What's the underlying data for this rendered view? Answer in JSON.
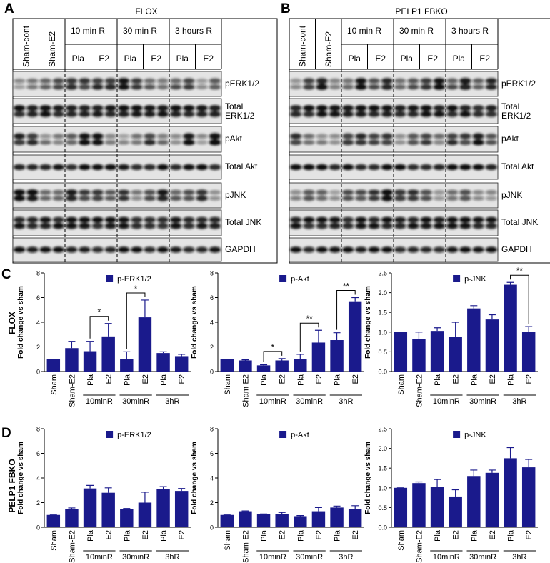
{
  "blots": [
    {
      "letter": "A",
      "title": "FLOX",
      "columns": [
        "Sham-cont",
        "Sham-E2",
        "10 min R",
        "30 min R",
        "3 hours R"
      ],
      "sub": [
        "Pla",
        "E2",
        "Pla",
        "E2",
        "Pla",
        "E2"
      ],
      "rows": [
        "pERK1/2",
        "Total ERK1/2",
        "pAkt",
        "Total Akt",
        "pJNK",
        "Total JNK",
        "GAPDH"
      ]
    },
    {
      "letter": "B",
      "title": "PELP1 FBKO",
      "columns": [
        "Sham-cont",
        "Sham-E2",
        "10 min R",
        "30 min R",
        "3 hours R"
      ],
      "sub": [
        "Pla",
        "E2",
        "Pla",
        "E2",
        "Pla",
        "E2"
      ],
      "rows": [
        "pERK1/2",
        "Total ERK1/2",
        "pAkt",
        "Total Akt",
        "pJNK",
        "Total JNK",
        "GAPDH"
      ]
    }
  ],
  "row_letters": [
    "C",
    "D"
  ],
  "row_labels": [
    "FLOX",
    "PELP1 FBKO"
  ],
  "chart_data": [
    {
      "type": "bar",
      "ylabel": "Fold change vs sham",
      "categories": [
        "Sham",
        "Sham-E2",
        "Pla",
        "E2",
        "Pla",
        "E2",
        "Pla",
        "E2"
      ],
      "groups": [
        "10minR",
        "30minR",
        "3hR"
      ],
      "series": [
        {
          "name": "p-ERK1/2",
          "color": "#1a1a8c",
          "values": [
            1,
            1.9,
            1.65,
            2.85,
            1.0,
            4.4,
            1.5,
            1.25
          ],
          "errors": [
            0,
            0.55,
            0.8,
            1.05,
            0.6,
            1.4,
            0.1,
            0.15
          ]
        }
      ],
      "ylim": [
        0,
        8
      ],
      "yticks": [
        0,
        2,
        4,
        6,
        8
      ],
      "annotations": [
        "*",
        "*"
      ]
    },
    {
      "type": "bar",
      "ylabel": "Fold change vs sham",
      "categories": [
        "Sham",
        "Sham-E2",
        "Pla",
        "E2",
        "Pla",
        "E2",
        "Pla",
        "E2"
      ],
      "groups": [
        "10minR",
        "30minR",
        "3hR"
      ],
      "series": [
        {
          "name": "p-Akt",
          "color": "#1a1a8c",
          "values": [
            1,
            0.9,
            0.5,
            0.9,
            1.0,
            2.35,
            2.55,
            5.7
          ],
          "errors": [
            0,
            0.05,
            0.05,
            0.15,
            0.4,
            1.0,
            0.6,
            0.3
          ]
        }
      ],
      "ylim": [
        0,
        8
      ],
      "yticks": [
        0,
        2,
        4,
        6,
        8
      ],
      "annotations": [
        "*",
        "**",
        "**"
      ]
    },
    {
      "type": "bar",
      "ylabel": "Fold change vs sham",
      "categories": [
        "Sham",
        "Sham-E2",
        "Pla",
        "E2",
        "Pla",
        "E2",
        "Pla",
        "E2"
      ],
      "groups": [
        "10minR",
        "30minR",
        "3hR"
      ],
      "series": [
        {
          "name": "p-JNK",
          "color": "#1a1a8c",
          "values": [
            1.0,
            0.82,
            1.03,
            0.87,
            1.6,
            1.32,
            2.2,
            1.0
          ],
          "errors": [
            0,
            0.18,
            0.08,
            0.38,
            0.07,
            0.12,
            0.06,
            0.14
          ]
        }
      ],
      "ylim": [
        0,
        2.5
      ],
      "yticks": [
        {
          "value": 0,
          "label": "0.0"
        },
        0.5,
        {
          "value": 1,
          "label": "1.0"
        },
        1.5,
        {
          "value": 2,
          "label": "2.0"
        },
        2.5
      ],
      "annotations": [
        "**"
      ]
    },
    {
      "type": "bar",
      "ylabel": "Fold change vs sham",
      "categories": [
        "Sham",
        "Sham-E2",
        "Pla",
        "E2",
        "Pla",
        "E2",
        "Pla",
        "E2"
      ],
      "groups": [
        "10minR",
        "30minR",
        "3hR"
      ],
      "series": [
        {
          "name": "p-ERK1/2",
          "color": "#1a1a8c",
          "values": [
            1.0,
            1.5,
            3.15,
            2.8,
            1.45,
            2.0,
            3.1,
            2.95
          ],
          "errors": [
            0,
            0.07,
            0.25,
            0.4,
            0.07,
            0.85,
            0.2,
            0.2
          ]
        }
      ],
      "ylim": [
        0,
        8
      ],
      "yticks": [
        0,
        2,
        4,
        6,
        8
      ]
    },
    {
      "type": "bar",
      "ylabel": "Fold change vs sham",
      "categories": [
        "Sham",
        "Sham-E2",
        "Pla",
        "E2",
        "Pla",
        "E2",
        "Pla",
        "E2"
      ],
      "groups": [
        "10minR",
        "30minR",
        "3hR"
      ],
      "series": [
        {
          "name": "p-Akt",
          "color": "#1a1a8c",
          "values": [
            1.0,
            1.3,
            1.05,
            1.1,
            0.9,
            1.3,
            1.6,
            1.5
          ],
          "errors": [
            0,
            0.03,
            0.03,
            0.1,
            0.05,
            0.3,
            0.12,
            0.25
          ]
        }
      ],
      "ylim": [
        0,
        8
      ],
      "yticks": [
        0,
        2,
        4,
        6,
        8
      ]
    },
    {
      "type": "bar",
      "ylabel": "Fold change vs sham",
      "categories": [
        "Sham",
        "Sham-E2",
        "Pla",
        "E2",
        "Pla",
        "E2",
        "Pla",
        "E2"
      ],
      "groups": [
        "10minR",
        "30minR",
        "3hR"
      ],
      "series": [
        {
          "name": "p-JNK",
          "color": "#1a1a8c",
          "values": [
            1.0,
            1.12,
            1.03,
            0.78,
            1.3,
            1.38,
            1.75,
            1.52
          ],
          "errors": [
            0,
            0.03,
            0.18,
            0.17,
            0.15,
            0.07,
            0.27,
            0.2
          ]
        }
      ],
      "ylim": [
        0,
        2.5
      ],
      "yticks": [
        {
          "value": 0,
          "label": "0.0"
        },
        0.5,
        {
          "value": 1,
          "label": "1.0"
        },
        1.5,
        {
          "value": 2,
          "label": "2.0"
        },
        2.5
      ]
    }
  ]
}
